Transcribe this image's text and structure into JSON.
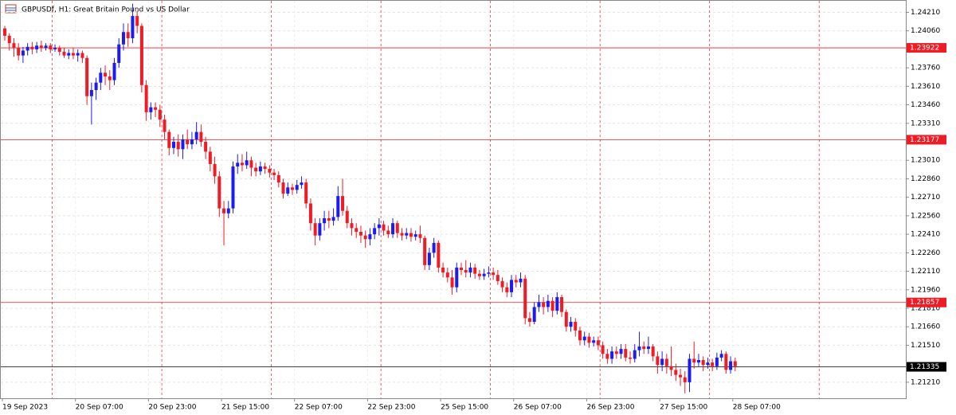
{
  "chart_data": {
    "type": "candlestick",
    "title": "GBPUSDf, H1:  Great Britain Pound vs US Dollar",
    "categories": [
      "19 Sep 2023",
      null,
      null,
      null,
      null,
      null,
      null,
      null,
      null,
      null,
      null,
      null,
      null,
      null,
      null,
      null,
      "20 Sep 07:00",
      null,
      null,
      null,
      null,
      null,
      null,
      null,
      null,
      null,
      null,
      null,
      null,
      null,
      null,
      null,
      "20 Sep 23:00",
      null,
      null,
      null,
      null,
      null,
      null,
      null,
      null,
      null,
      null,
      null,
      null,
      null,
      null,
      null,
      "21 Sep 15:00",
      null,
      null,
      null,
      null,
      null,
      null,
      null,
      null,
      null,
      null,
      null,
      null,
      null,
      null,
      null,
      "22 Sep 07:00",
      null,
      null,
      null,
      null,
      null,
      null,
      null,
      null,
      null,
      null,
      null,
      null,
      null,
      null,
      null,
      "22 Sep 23:00",
      null,
      null,
      null,
      null,
      null,
      null,
      null,
      null,
      null,
      null,
      null,
      null,
      null,
      null,
      null,
      "25 Sep 15:00",
      null,
      null,
      null,
      null,
      null,
      null,
      null,
      null,
      null,
      null,
      null,
      null,
      null,
      null,
      null,
      "26 Sep 07:00",
      null,
      null,
      null,
      null,
      null,
      null,
      null,
      null,
      null,
      null,
      null,
      null,
      null,
      null,
      null,
      "26 Sep 23:00",
      null,
      null,
      null,
      null,
      null,
      null,
      null,
      null,
      null,
      null,
      null,
      null,
      null,
      null,
      null,
      "27 Sep 15:00",
      null,
      null,
      null,
      null,
      null,
      null,
      null,
      null,
      null,
      null,
      null,
      null,
      null,
      null,
      null,
      "28 Sep 07:00"
    ],
    "open": [
      1.2408,
      1.2402,
      1.2396,
      1.2392,
      1.2386,
      1.239,
      1.2393,
      1.2391,
      1.2394,
      1.2392,
      1.2394,
      1.2391,
      1.2392,
      1.2389,
      1.2386,
      1.2388,
      1.2386,
      1.2388,
      1.2384,
      1.2353,
      1.2358,
      1.2364,
      1.2372,
      1.2369,
      1.2366,
      1.238,
      1.2395,
      1.2405,
      1.24,
      1.2418,
      1.241,
      1.2362,
      1.234,
      1.2344,
      1.2342,
      1.2334,
      1.2324,
      1.2311,
      1.2316,
      1.231,
      1.2318,
      1.2314,
      1.2318,
      1.2324,
      1.2316,
      1.2308,
      1.2298,
      1.2288,
      1.2262,
      1.2258,
      1.2262,
      1.2296,
      1.2299,
      1.2297,
      1.2301,
      1.2295,
      1.2292,
      1.2296,
      1.2294,
      1.2291,
      1.2289,
      1.2283,
      1.2274,
      1.2279,
      1.2277,
      1.2281,
      1.2283,
      1.2266,
      1.225,
      1.224,
      1.225,
      1.2254,
      1.2252,
      1.2255,
      1.2272,
      1.226,
      1.225,
      1.2246,
      1.2243,
      1.224,
      1.2237,
      1.2241,
      1.2246,
      1.2249,
      1.2244,
      1.2241,
      1.225,
      1.2242,
      1.224,
      1.2242,
      1.2239,
      1.2241,
      1.2238,
      1.2216,
      1.2226,
      1.2234,
      1.2214,
      1.221,
      1.2206,
      1.2198,
      1.2214,
      1.2212,
      1.221,
      1.2214,
      1.2209,
      1.2207,
      1.2209,
      1.221,
      1.2208,
      1.2203,
      1.2198,
      1.2194,
      1.2204,
      1.2202,
      1.2205,
      1.2173,
      1.217,
      1.2182,
      1.2186,
      1.2182,
      1.2187,
      1.2179,
      1.219,
      1.2178,
      1.2166,
      1.217,
      1.2163,
      1.2155,
      1.2158,
      1.2153,
      1.2155,
      1.2151,
      1.2144,
      1.214,
      1.2146,
      1.2144,
      1.2148,
      1.2141,
      1.214,
      1.2147,
      1.215,
      1.2148,
      1.215,
      1.2142,
      1.2135,
      1.214,
      1.2134,
      1.2131,
      1.2127,
      1.2125,
      1.2121,
      1.214,
      1.2137,
      1.2139,
      1.2135,
      1.2137,
      1.2134,
      1.2141,
      1.2144,
      1.2131,
      1.2138
    ],
    "high": [
      1.241,
      1.2404,
      1.24,
      1.2396,
      1.2393,
      1.2396,
      1.2397,
      1.2397,
      1.2398,
      1.2396,
      1.2396,
      1.2395,
      1.2394,
      1.2392,
      1.2391,
      1.2392,
      1.2391,
      1.239,
      1.2386,
      1.2364,
      1.2368,
      1.2376,
      1.2378,
      1.2374,
      1.2384,
      1.24,
      1.2412,
      1.2412,
      1.2428,
      1.2422,
      1.2412,
      1.2366,
      1.2348,
      1.2348,
      1.2346,
      1.2338,
      1.2326,
      1.232,
      1.2322,
      1.2322,
      1.2326,
      1.2324,
      1.2332,
      1.233,
      1.232,
      1.2312,
      1.2304,
      1.2292,
      1.2268,
      1.2268,
      1.23,
      1.2306,
      1.2306,
      1.2308,
      1.2304,
      1.2299,
      1.23,
      1.2299,
      1.2297,
      1.2294,
      1.2292,
      1.2286,
      1.2283,
      1.2282,
      1.2285,
      1.2288,
      1.2286,
      1.227,
      1.2254,
      1.2254,
      1.226,
      1.226,
      1.2262,
      1.228,
      1.2286,
      1.2264,
      1.2254,
      1.225,
      1.2248,
      1.2244,
      1.2246,
      1.225,
      1.2254,
      1.2252,
      1.2248,
      1.2254,
      1.2252,
      1.2246,
      1.2246,
      1.2246,
      1.2244,
      1.2248,
      1.224,
      1.223,
      1.2238,
      1.2236,
      1.2218,
      1.2214,
      1.2212,
      1.2218,
      1.2218,
      1.222,
      1.2218,
      1.2217,
      1.2212,
      1.2213,
      1.2215,
      1.2214,
      1.2212,
      1.2206,
      1.2202,
      1.2208,
      1.2208,
      1.221,
      1.2208,
      1.2178,
      1.2186,
      1.2192,
      1.219,
      1.2192,
      1.219,
      1.2194,
      1.2192,
      1.218,
      1.2174,
      1.2173,
      1.2166,
      1.2162,
      1.2161,
      1.2158,
      1.2158,
      1.2154,
      1.2148,
      1.215,
      1.215,
      1.2152,
      1.2152,
      1.2146,
      1.2152,
      1.2162,
      1.2154,
      1.2158,
      1.2152,
      1.2146,
      1.2146,
      1.2144,
      1.215,
      1.2136,
      1.2132,
      1.213,
      1.2144,
      1.2154,
      1.2144,
      1.2142,
      1.2141,
      1.214,
      1.2145,
      1.2147,
      1.2146,
      1.2142,
      1.2141
    ],
    "low": [
      1.2398,
      1.239,
      1.2385,
      1.2382,
      1.238,
      1.2386,
      1.2387,
      1.2388,
      1.2389,
      1.239,
      1.2388,
      1.2389,
      1.2386,
      1.2384,
      1.2383,
      1.2383,
      1.2381,
      1.238,
      1.2346,
      1.233,
      1.235,
      1.2358,
      1.2362,
      1.2358,
      1.2362,
      1.2376,
      1.239,
      1.2393,
      1.2396,
      1.2404,
      1.2356,
      1.2333,
      1.2334,
      1.2336,
      1.2328,
      1.2318,
      1.2305,
      1.2306,
      1.2304,
      1.2302,
      1.231,
      1.231,
      1.2314,
      1.2312,
      1.2302,
      1.2292,
      1.2282,
      1.2255,
      1.2232,
      1.2254,
      1.2258,
      1.229,
      1.2292,
      1.2294,
      1.2288,
      1.2288,
      1.2289,
      1.229,
      1.2287,
      1.2285,
      1.2279,
      1.227,
      1.2272,
      1.2273,
      1.2274,
      1.2278,
      1.2262,
      1.2244,
      1.2232,
      1.2236,
      1.2244,
      1.2246,
      1.2248,
      1.2252,
      1.2256,
      1.2246,
      1.224,
      1.2238,
      1.2234,
      1.223,
      1.2232,
      1.2237,
      1.224,
      1.224,
      1.2238,
      1.2238,
      1.2238,
      1.2236,
      1.2237,
      1.2235,
      1.2236,
      1.2234,
      1.2212,
      1.2212,
      1.2222,
      1.221,
      1.2206,
      1.2202,
      1.2192,
      1.2194,
      1.2208,
      1.2206,
      1.2206,
      1.2205,
      1.2204,
      1.2204,
      1.2206,
      1.2204,
      1.22,
      1.2194,
      1.219,
      1.219,
      1.2198,
      1.2198,
      1.2168,
      1.2166,
      1.2168,
      1.2178,
      1.2176,
      1.2178,
      1.2174,
      1.2176,
      1.2174,
      1.2162,
      1.2162,
      1.2158,
      1.2151,
      1.2151,
      1.2149,
      1.215,
      1.2147,
      1.214,
      1.2136,
      1.2136,
      1.214,
      1.214,
      1.2138,
      1.2136,
      1.2137,
      1.2142,
      1.2144,
      1.2144,
      1.2138,
      1.2128,
      1.213,
      1.2128,
      1.2126,
      1.2122,
      1.2118,
      1.2112,
      1.2113,
      1.2132,
      1.2134,
      1.213,
      1.2132,
      1.213,
      1.2131,
      1.2138,
      1.2128,
      1.2128,
      1.213
    ],
    "close": [
      1.2402,
      1.2396,
      1.2392,
      1.2386,
      1.239,
      1.2393,
      1.2391,
      1.2394,
      1.2392,
      1.2394,
      1.2391,
      1.2392,
      1.2389,
      1.2386,
      1.2388,
      1.2386,
      1.2388,
      1.2384,
      1.2353,
      1.2358,
      1.2364,
      1.2372,
      1.2369,
      1.2366,
      1.238,
      1.2395,
      1.2405,
      1.24,
      1.2418,
      1.241,
      1.2362,
      1.234,
      1.2344,
      1.2342,
      1.2334,
      1.2324,
      1.2311,
      1.2316,
      1.231,
      1.2318,
      1.2314,
      1.2318,
      1.2324,
      1.2316,
      1.2308,
      1.2298,
      1.2288,
      1.2262,
      1.2258,
      1.2262,
      1.2296,
      1.2299,
      1.2297,
      1.2301,
      1.2295,
      1.2292,
      1.2296,
      1.2294,
      1.2291,
      1.2289,
      1.2283,
      1.2274,
      1.2279,
      1.2277,
      1.2281,
      1.2283,
      1.2266,
      1.225,
      1.224,
      1.225,
      1.2254,
      1.2252,
      1.2255,
      1.2272,
      1.226,
      1.225,
      1.2246,
      1.2243,
      1.224,
      1.2237,
      1.2241,
      1.2246,
      1.2249,
      1.2244,
      1.2241,
      1.225,
      1.2242,
      1.224,
      1.2242,
      1.2239,
      1.2241,
      1.2238,
      1.2216,
      1.2226,
      1.2234,
      1.2214,
      1.221,
      1.2206,
      1.2198,
      1.2214,
      1.2212,
      1.221,
      1.2214,
      1.2209,
      1.2207,
      1.2209,
      1.221,
      1.2208,
      1.2203,
      1.2198,
      1.2194,
      1.2204,
      1.2202,
      1.2205,
      1.2173,
      1.217,
      1.2182,
      1.2186,
      1.2182,
      1.2187,
      1.2179,
      1.219,
      1.2178,
      1.2166,
      1.217,
      1.2163,
      1.2155,
      1.2158,
      1.2153,
      1.2155,
      1.2151,
      1.2144,
      1.214,
      1.2146,
      1.2144,
      1.2148,
      1.2141,
      1.214,
      1.2147,
      1.215,
      1.2148,
      1.215,
      1.2142,
      1.2135,
      1.214,
      1.2134,
      1.2131,
      1.2127,
      1.2125,
      1.2121,
      1.214,
      1.2137,
      1.2139,
      1.2135,
      1.2137,
      1.2134,
      1.2141,
      1.2144,
      1.2131,
      1.2138,
      1.2134
    ],
    "up_color": "#1c1cf0",
    "down_color": "#ee1c25",
    "ylim": [
      1.2108,
      1.2431
    ],
    "yticks": [
      {
        "value": 1.2421,
        "label": "1.24210"
      },
      {
        "value": 1.2406,
        "label": "1.24060"
      },
      {
        "value": 1.2376,
        "label": "1.23760"
      },
      {
        "value": 1.2361,
        "label": "1.23610"
      },
      {
        "value": 1.2346,
        "label": "1.23460"
      },
      {
        "value": 1.2331,
        "label": "1.23310"
      },
      {
        "value": 1.2301,
        "label": "1.23010"
      },
      {
        "value": 1.2286,
        "label": "1.22860"
      },
      {
        "value": 1.2271,
        "label": "1.22710"
      },
      {
        "value": 1.2256,
        "label": "1.22560"
      },
      {
        "value": 1.2241,
        "label": "1.22410"
      },
      {
        "value": 1.2226,
        "label": "1.22260"
      },
      {
        "value": 1.2211,
        "label": "1.22110"
      },
      {
        "value": 1.2196,
        "label": "1.21960"
      },
      {
        "value": 1.2181,
        "label": "1.21810"
      },
      {
        "value": 1.2166,
        "label": "1.21660"
      },
      {
        "value": 1.2151,
        "label": "1.21510"
      },
      {
        "value": 1.2121,
        "label": "1.21210"
      }
    ],
    "levels": [
      {
        "value": 1.23922,
        "color": "#ee1c25"
      },
      {
        "value": 1.23177,
        "color": "#ee1c25"
      },
      {
        "value": 1.21857,
        "color": "#ee1c25"
      },
      {
        "value": 1.21335,
        "color": "#000000"
      }
    ],
    "grid": true
  }
}
